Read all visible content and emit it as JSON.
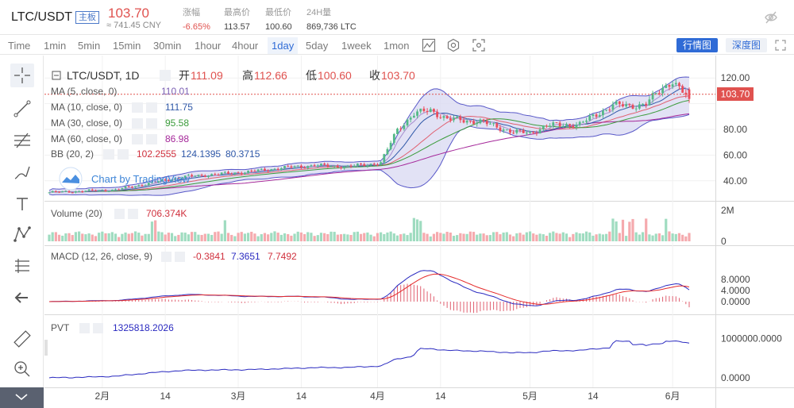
{
  "header": {
    "symbol": "LTC/USDT",
    "tag": "主板",
    "price": "103.70",
    "cny": "≈ 741.45 CNY",
    "stats": [
      {
        "k": "涨幅",
        "v": "-6.65%",
        "c": "#e0524f"
      },
      {
        "k": "最高价",
        "v": "113.57",
        "c": "#444"
      },
      {
        "k": "最低价",
        "v": "100.60",
        "c": "#444"
      },
      {
        "k": "24H量",
        "v": "869,736 LTC",
        "c": "#444"
      }
    ]
  },
  "toolbar": {
    "timeframes": [
      "Time",
      "1min",
      "5min",
      "15min",
      "30min",
      "1hour",
      "4hour",
      "1day",
      "5day",
      "1week",
      "1mon"
    ],
    "active": "1day",
    "view_buttons": [
      "行情图",
      "深度图"
    ]
  },
  "colors": {
    "up": "#53b987",
    "down": "#eb4d5c",
    "vol_up": "#9fdcc0",
    "vol_down": "#f5aaae",
    "ma5": "#a78fd0",
    "ma10": "#2f58a8",
    "ma30": "#3a9b3a",
    "ma60": "#a5289a",
    "bb": "#5858c8",
    "macd": "#2a2ac0",
    "signal": "#e52a2a",
    "pvt": "#2a2ac0",
    "accent": "#2f6bd6"
  },
  "legend": {
    "title": "LTC/USDT, 1D",
    "open_label": "开",
    "open": "111.09",
    "high_label": "高",
    "high": "112.66",
    "low_label": "低",
    "low": "100.60",
    "close_label": "收",
    "close": "103.70",
    "ma5": {
      "label": "MA (5, close, 0)",
      "value": "110.01"
    },
    "ma10": {
      "label": "MA (10, close, 0)",
      "value": "111.75"
    },
    "ma30": {
      "label": "MA (30, close, 0)",
      "value": "95.58"
    },
    "ma60": {
      "label": "MA (60, close, 0)",
      "value": "86.98"
    },
    "bb": {
      "label": "BB (20, 2)",
      "v1": "102.2555",
      "v2": "124.1395",
      "v3": "80.3715"
    },
    "volume": {
      "label": "Volume (20)",
      "value": "706.374K"
    },
    "macd": {
      "label": "MACD (12, 26, close, 9)",
      "hist": "-0.3841",
      "macd": "7.3651",
      "signal": "7.7492"
    },
    "pvt": {
      "label": "PVT",
      "value": "1325818.2026"
    },
    "watermark": "Chart by TradingView"
  },
  "chart_data": {
    "type": "line",
    "price_ticks": [
      "120.00",
      "100.00",
      "80.00",
      "60.00",
      "40.00"
    ],
    "last_price_tag": "103.70",
    "vol_ticks": [
      "2M",
      "0"
    ],
    "macd_ticks": [
      "8.0000",
      "4.0000",
      "0.0000"
    ],
    "pvt_ticks": [
      "1000000.0000",
      "0.0000"
    ],
    "x_labels": [
      "2月",
      "14",
      "3月",
      "14",
      "4月",
      "14",
      "5月",
      "14",
      "6月"
    ],
    "close_points": [
      [
        0,
        31
      ],
      [
        10,
        32
      ],
      [
        20,
        33
      ],
      [
        30,
        38
      ],
      [
        40,
        43
      ],
      [
        50,
        45
      ],
      [
        60,
        47
      ],
      [
        70,
        50
      ],
      [
        80,
        52
      ],
      [
        90,
        51
      ],
      [
        100,
        54
      ],
      [
        105,
        80
      ],
      [
        110,
        92
      ],
      [
        115,
        95
      ],
      [
        120,
        88
      ],
      [
        130,
        86
      ],
      [
        140,
        78
      ],
      [
        145,
        77
      ],
      [
        150,
        83
      ],
      [
        160,
        84
      ],
      [
        170,
        99
      ],
      [
        175,
        98
      ],
      [
        180,
        100
      ],
      [
        185,
        112
      ],
      [
        188,
        118
      ],
      [
        192,
        106
      ],
      [
        193,
        103.7
      ]
    ]
  }
}
